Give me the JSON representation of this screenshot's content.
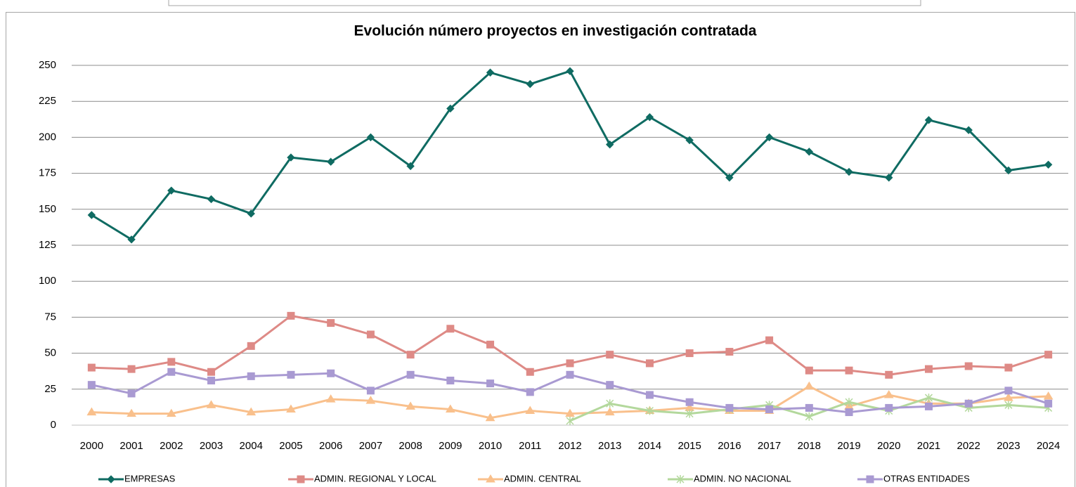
{
  "chart_data": {
    "type": "line",
    "title": "Evolución número proyectos en investigación contratada",
    "categories": [
      "2000",
      "2001",
      "2002",
      "2003",
      "2004",
      "2005",
      "2006",
      "2007",
      "2008",
      "2009",
      "2010",
      "2011",
      "2012",
      "2013",
      "2014",
      "2015",
      "2016",
      "2017",
      "2018",
      "2019",
      "2020",
      "2021",
      "2022",
      "2023",
      "2024"
    ],
    "series": [
      {
        "name": "EMPRESAS",
        "color": "#0f6b62",
        "marker": "diamond",
        "values": [
          146,
          129,
          163,
          157,
          147,
          186,
          183,
          200,
          180,
          220,
          245,
          237,
          246,
          195,
          214,
          198,
          172,
          200,
          190,
          176,
          172,
          212,
          205,
          177,
          181
        ]
      },
      {
        "name": "ADMIN. REGIONAL Y LOCAL",
        "color": "#de8a86",
        "marker": "square",
        "values": [
          40,
          39,
          44,
          37,
          55,
          76,
          71,
          63,
          49,
          67,
          56,
          37,
          43,
          49,
          43,
          50,
          51,
          59,
          38,
          38,
          35,
          39,
          41,
          40,
          49
        ]
      },
      {
        "name": "ADMIN. CENTRAL",
        "color": "#f9c08c",
        "marker": "triangle",
        "values": [
          9,
          8,
          8,
          14,
          9,
          11,
          18,
          17,
          13,
          11,
          5,
          10,
          8,
          9,
          10,
          12,
          10,
          10,
          27,
          13,
          21,
          15,
          15,
          19,
          20
        ]
      },
      {
        "name": "ADMIN. NO NACIONAL",
        "color": "#b3d89c",
        "marker": "star",
        "values": [
          null,
          null,
          null,
          null,
          null,
          null,
          null,
          null,
          null,
          null,
          null,
          null,
          3,
          15,
          10,
          8,
          11,
          14,
          6,
          16,
          10,
          19,
          12,
          14,
          12
        ]
      },
      {
        "name": "OTRAS ENTIDADES",
        "color": "#a99ad2",
        "marker": "square",
        "values": [
          28,
          22,
          37,
          31,
          34,
          35,
          36,
          24,
          35,
          31,
          29,
          23,
          35,
          28,
          21,
          16,
          12,
          11,
          12,
          9,
          12,
          13,
          15,
          24,
          15
        ]
      }
    ],
    "ylim": [
      0,
      250
    ],
    "yticks": [
      0,
      25,
      50,
      75,
      100,
      125,
      150,
      175,
      200,
      225,
      250
    ],
    "grid": true,
    "legend": "bottom"
  }
}
